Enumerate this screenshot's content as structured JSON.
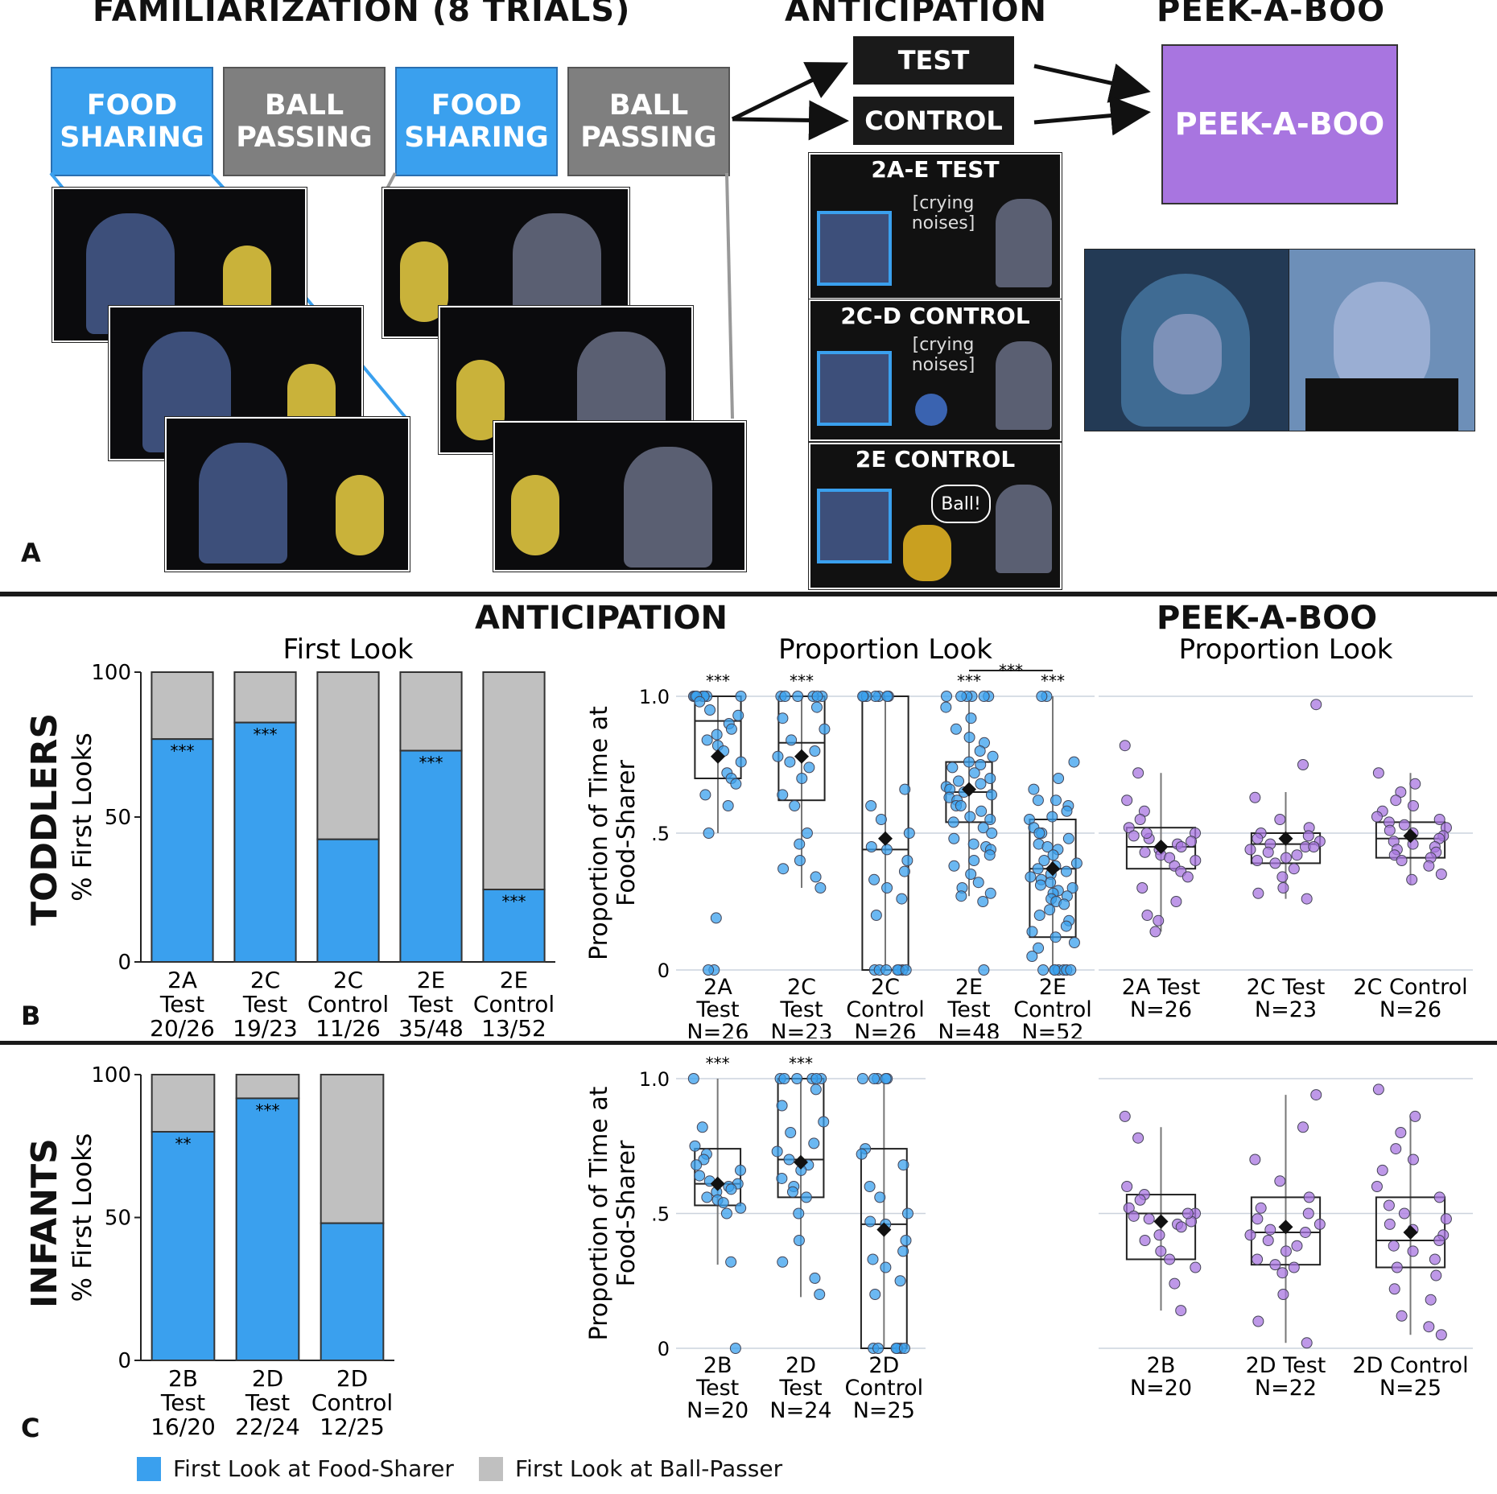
{
  "panelA": {
    "familiarization_title": "FAMILIARIZATION (8 TRIALS)",
    "anticipation_title": "ANTICIPATION",
    "peekaboo_title": "PEEK-A-BOO",
    "boxes": [
      "FOOD SHARING",
      "BALL PASSING",
      "FOOD SHARING",
      "BALL PASSING"
    ],
    "test_label": "TEST",
    "control_label": "CONTROL",
    "peekaboo_box": "PEEK-A-BOO",
    "scene1_title": "2A-E TEST",
    "scene1_caption": "[crying noises]",
    "scene2_title": "2C-D CONTROL",
    "scene2_caption": "[crying noises]",
    "scene3_title": "2E CONTROL",
    "scene3_bubble": "Ball!",
    "label": "A",
    "colors": {
      "blue": "#3aa0ee",
      "gray": "#7f7f7f",
      "purple": "#a875e0"
    }
  },
  "section_titles": {
    "anticipation": "ANTICIPATION",
    "peekaboo": "PEEK-A-BOO"
  },
  "rows": {
    "toddlers": "TODDLERS",
    "infants": "INFANTS"
  },
  "panel_labels": {
    "B": "B",
    "C": "C"
  },
  "chart_data": [
    {
      "id": "toddlers_first_look",
      "type": "bar",
      "stacked": true,
      "title": "First Look",
      "ylabel": "% First Looks",
      "ylim": [
        0,
        100
      ],
      "yticks": [
        "0",
        "50",
        "100"
      ],
      "categories": [
        [
          "2A",
          "Test",
          "20/26"
        ],
        [
          "2C",
          "Test",
          "19/23"
        ],
        [
          "2C",
          "Control",
          "11/26"
        ],
        [
          "2E",
          "Test",
          "35/48"
        ],
        [
          "2E",
          "Control",
          "13/52"
        ]
      ],
      "series": [
        {
          "name": "First Look at Food-Sharer",
          "color": "#3aa0ee",
          "values": [
            76.9,
            82.6,
            42.3,
            72.9,
            25.0
          ]
        },
        {
          "name": "First Look at Ball-Passer",
          "color": "#c0c0c0",
          "values": [
            23.1,
            17.4,
            57.7,
            27.1,
            75.0
          ]
        }
      ],
      "significance": [
        "***",
        "***",
        "",
        "***",
        "***"
      ]
    },
    {
      "id": "toddlers_proportion_look",
      "type": "box",
      "title": "Proportion Look",
      "ylabel": "Proportion of Time at Food-Sharer",
      "ylim": [
        0,
        1
      ],
      "yticks": [
        "0",
        ".5",
        "1.0"
      ],
      "categories": [
        [
          "2A",
          "Test",
          "N=26"
        ],
        [
          "2C",
          "Test",
          "N=23"
        ],
        [
          "2C",
          "Control",
          "N=26"
        ],
        [
          "2E",
          "Test",
          "N=48"
        ],
        [
          "2E",
          "Control",
          "N=52"
        ]
      ],
      "significance": [
        "***",
        "***",
        "",
        "***",
        "***"
      ],
      "bracket": {
        "from": 3,
        "to": 4,
        "label": "***"
      },
      "color": "#3aa0ee",
      "boxes": [
        {
          "q1": 0.7,
          "median": 0.91,
          "q3": 1.0,
          "mean": 0.78,
          "min": 0.5,
          "max": 1.0,
          "points": [
            1,
            1,
            1,
            1,
            1,
            1,
            1,
            0.98,
            0.95,
            0.93,
            0.9,
            0.88,
            0.86,
            0.84,
            0.82,
            0.8,
            0.76,
            0.72,
            0.7,
            0.68,
            0.64,
            0.6,
            0.5,
            0.19,
            0,
            0
          ]
        },
        {
          "q1": 0.62,
          "median": 0.83,
          "q3": 1.0,
          "mean": 0.78,
          "min": 0.3,
          "max": 1.0,
          "points": [
            1,
            1,
            1,
            1,
            1,
            1,
            0.96,
            0.92,
            0.88,
            0.84,
            0.8,
            0.78,
            0.76,
            0.74,
            0.7,
            0.64,
            0.6,
            0.5,
            0.46,
            0.4,
            0.37,
            0.34,
            0.3
          ]
        },
        {
          "q1": 0.0,
          "median": 0.44,
          "q3": 1.0,
          "mean": 0.48,
          "min": 0.0,
          "max": 1.0,
          "points": [
            1,
            1,
            1,
            1,
            1,
            1,
            1,
            0.66,
            0.6,
            0.55,
            0.5,
            0.45,
            0.44,
            0.4,
            0.36,
            0.33,
            0.3,
            0.26,
            0.2,
            0,
            0,
            0,
            0,
            0,
            0,
            0
          ]
        },
        {
          "q1": 0.54,
          "median": 0.65,
          "q3": 0.76,
          "mean": 0.66,
          "min": 0.27,
          "max": 1.0,
          "points": [
            1,
            1,
            1,
            1,
            1,
            1,
            0.96,
            0.92,
            0.88,
            0.85,
            0.83,
            0.8,
            0.78,
            0.76,
            0.75,
            0.74,
            0.72,
            0.7,
            0.69,
            0.68,
            0.67,
            0.66,
            0.65,
            0.64,
            0.63,
            0.62,
            0.6,
            0.58,
            0.56,
            0.55,
            0.54,
            0.52,
            0.5,
            0.48,
            0.46,
            0.45,
            0.44,
            0.42,
            0.4,
            0.38,
            0.35,
            0.32,
            0.3,
            0.28,
            0.27,
            0.25,
            0,
            0.6
          ]
        },
        {
          "q1": 0.12,
          "median": 0.37,
          "q3": 0.55,
          "mean": 0.37,
          "min": 0.0,
          "max": 1.0,
          "points": [
            1,
            1,
            0.76,
            0.7,
            0.66,
            0.62,
            0.6,
            0.58,
            0.55,
            0.52,
            0.5,
            0.48,
            0.46,
            0.45,
            0.44,
            0.42,
            0.4,
            0.39,
            0.38,
            0.37,
            0.36,
            0.35,
            0.34,
            0.33,
            0.32,
            0.31,
            0.3,
            0.29,
            0.28,
            0.27,
            0.26,
            0.25,
            0.24,
            0.22,
            0.2,
            0.18,
            0.16,
            0.14,
            0.12,
            0.1,
            0.08,
            0.05,
            0.5,
            0.56,
            0.62,
            0,
            0,
            0,
            0,
            0,
            0,
            0
          ]
        }
      ]
    },
    {
      "id": "toddlers_peekaboo",
      "type": "box",
      "title": "Proportion Look",
      "ylim": [
        0,
        1
      ],
      "categories": [
        [
          "2A Test",
          "N=26"
        ],
        [
          "2C Test",
          "N=23"
        ],
        [
          "2C Control",
          "N=26"
        ]
      ],
      "color": "#a875e0",
      "boxes": [
        {
          "q1": 0.37,
          "median": 0.45,
          "q3": 0.52,
          "mean": 0.45,
          "min": 0.14,
          "max": 0.72,
          "points": [
            0.82,
            0.72,
            0.62,
            0.58,
            0.55,
            0.52,
            0.5,
            0.49,
            0.48,
            0.47,
            0.46,
            0.45,
            0.44,
            0.43,
            0.42,
            0.41,
            0.4,
            0.38,
            0.36,
            0.34,
            0.3,
            0.25,
            0.2,
            0.18,
            0.14,
            0.5
          ]
        },
        {
          "q1": 0.39,
          "median": 0.46,
          "q3": 0.5,
          "mean": 0.48,
          "min": 0.26,
          "max": 0.65,
          "points": [
            0.97,
            0.75,
            0.63,
            0.55,
            0.52,
            0.5,
            0.49,
            0.48,
            0.47,
            0.46,
            0.45,
            0.44,
            0.43,
            0.42,
            0.41,
            0.4,
            0.39,
            0.37,
            0.34,
            0.3,
            0.28,
            0.26,
            0.45
          ]
        },
        {
          "q1": 0.41,
          "median": 0.48,
          "q3": 0.54,
          "mean": 0.49,
          "min": 0.31,
          "max": 0.72,
          "points": [
            0.72,
            0.68,
            0.65,
            0.62,
            0.6,
            0.58,
            0.56,
            0.55,
            0.54,
            0.53,
            0.52,
            0.51,
            0.5,
            0.49,
            0.48,
            0.47,
            0.46,
            0.45,
            0.44,
            0.43,
            0.42,
            0.41,
            0.4,
            0.38,
            0.35,
            0.33
          ]
        }
      ]
    },
    {
      "id": "infants_first_look",
      "type": "bar",
      "stacked": true,
      "ylabel": "% First Looks",
      "ylim": [
        0,
        100
      ],
      "yticks": [
        "0",
        "50",
        "100"
      ],
      "categories": [
        [
          "2B",
          "Test",
          "16/20"
        ],
        [
          "2D",
          "Test",
          "22/24"
        ],
        [
          "2D",
          "Control",
          "12/25"
        ]
      ],
      "series": [
        {
          "name": "First Look at Food-Sharer",
          "color": "#3aa0ee",
          "values": [
            80.0,
            91.7,
            48.0
          ]
        },
        {
          "name": "First Look at Ball-Passer",
          "color": "#c0c0c0",
          "values": [
            20.0,
            8.3,
            52.0
          ]
        }
      ],
      "significance": [
        "**",
        "***",
        ""
      ]
    },
    {
      "id": "infants_proportion_look",
      "type": "box",
      "ylabel": "Proportion of Time at Food-Sharer",
      "ylim": [
        0,
        1
      ],
      "yticks": [
        "0",
        ".5",
        "1.0"
      ],
      "categories": [
        [
          "2B",
          "Test",
          "N=20"
        ],
        [
          "2D",
          "Test",
          "N=24"
        ],
        [
          "2D",
          "Control",
          "N=25"
        ]
      ],
      "significance": [
        "***",
        "***",
        ""
      ],
      "color": "#3aa0ee",
      "boxes": [
        {
          "q1": 0.53,
          "median": 0.61,
          "q3": 0.74,
          "mean": 0.61,
          "min": 0.31,
          "max": 1.0,
          "points": [
            1,
            0.82,
            0.75,
            0.72,
            0.7,
            0.68,
            0.66,
            0.64,
            0.62,
            0.61,
            0.6,
            0.59,
            0.58,
            0.56,
            0.55,
            0.54,
            0.52,
            0.5,
            0.32,
            0.0
          ]
        },
        {
          "q1": 0.56,
          "median": 0.7,
          "q3": 1.0,
          "mean": 0.69,
          "min": 0.19,
          "max": 1.0,
          "points": [
            1,
            1,
            1,
            1,
            1,
            1,
            0.96,
            0.9,
            0.84,
            0.8,
            0.76,
            0.73,
            0.7,
            0.68,
            0.66,
            0.63,
            0.6,
            0.56,
            0.5,
            0.4,
            0.32,
            0.26,
            0.2,
            0.58
          ]
        },
        {
          "q1": 0.0,
          "median": 0.46,
          "q3": 0.74,
          "mean": 0.44,
          "min": 0.0,
          "max": 1.0,
          "points": [
            1,
            1,
            1,
            1,
            1,
            0.74,
            0.72,
            0.68,
            0.6,
            0.56,
            0.5,
            0.47,
            0.46,
            0.4,
            0.36,
            0.33,
            0.3,
            0.25,
            0.2,
            0,
            0,
            0,
            0,
            0,
            0
          ]
        }
      ]
    },
    {
      "id": "infants_peekaboo",
      "type": "box",
      "ylim": [
        0,
        1
      ],
      "categories": [
        [
          "2B",
          "N=20"
        ],
        [
          "2D Test",
          "N=22"
        ],
        [
          "2D Control",
          "N=25"
        ]
      ],
      "color": "#a875e0",
      "boxes": [
        {
          "q1": 0.33,
          "median": 0.5,
          "q3": 0.57,
          "mean": 0.47,
          "min": 0.14,
          "max": 0.82,
          "points": [
            0.86,
            0.78,
            0.6,
            0.57,
            0.55,
            0.52,
            0.5,
            0.49,
            0.48,
            0.47,
            0.46,
            0.45,
            0.42,
            0.4,
            0.36,
            0.33,
            0.3,
            0.24,
            0.14,
            0.5
          ]
        },
        {
          "q1": 0.31,
          "median": 0.43,
          "q3": 0.56,
          "mean": 0.45,
          "min": 0.02,
          "max": 0.94,
          "points": [
            0.94,
            0.82,
            0.7,
            0.62,
            0.56,
            0.52,
            0.5,
            0.48,
            0.46,
            0.44,
            0.43,
            0.42,
            0.4,
            0.38,
            0.36,
            0.33,
            0.31,
            0.3,
            0.28,
            0.2,
            0.1,
            0.02
          ]
        },
        {
          "q1": 0.3,
          "median": 0.4,
          "q3": 0.56,
          "mean": 0.43,
          "min": 0.05,
          "max": 0.86,
          "points": [
            0.96,
            0.86,
            0.8,
            0.74,
            0.7,
            0.66,
            0.6,
            0.56,
            0.53,
            0.5,
            0.48,
            0.46,
            0.44,
            0.42,
            0.4,
            0.38,
            0.36,
            0.33,
            0.3,
            0.27,
            0.22,
            0.18,
            0.12,
            0.08,
            0.05
          ]
        }
      ]
    }
  ],
  "legend": [
    {
      "label": "First Look at Food-Sharer",
      "color": "#3aa0ee"
    },
    {
      "label": "First Look at Ball-Passer",
      "color": "#c0c0c0"
    }
  ]
}
